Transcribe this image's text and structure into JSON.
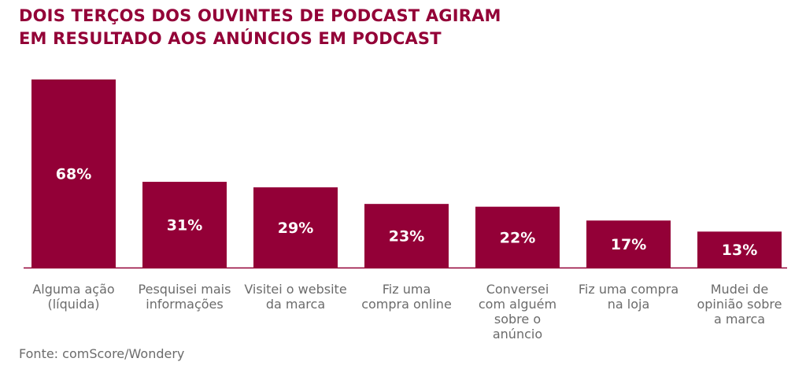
{
  "title_lines": [
    "DOIS TERÇOS DOS OUVINTES DE PODCAST AGIRAM",
    "EM RESULTADO AOS ANÚNCIOS EM PODCAST"
  ],
  "source": "Fonte: comScore/Wondery",
  "colors": {
    "bar": "#930037",
    "title": "#930037",
    "axis": "#930037",
    "category_text": "#6b6b6b",
    "value_text": "#ffffff"
  },
  "chart_data": {
    "type": "bar",
    "title": "DOIS TERÇOS DOS OUVINTES DE PODCAST AGIRAM EM RESULTADO AOS ANÚNCIOS EM PODCAST",
    "categories": [
      [
        "Alguma ação",
        "(líquida)"
      ],
      [
        "Pesquisei mais",
        "informações"
      ],
      [
        "Visitei o website",
        "da marca"
      ],
      [
        "Fiz uma",
        "compra online"
      ],
      [
        "Conversei",
        "com alguém",
        "sobre o",
        "anúncio"
      ],
      [
        "Fiz uma compra",
        "na loja"
      ],
      [
        "Mudei de",
        "opinião sobre",
        "a marca"
      ]
    ],
    "values": [
      68,
      31,
      29,
      23,
      22,
      17,
      13
    ],
    "value_labels": [
      "68%",
      "31%",
      "29%",
      "23%",
      "22%",
      "17%",
      "13%"
    ],
    "unit": "%",
    "ylim": [
      0,
      68
    ],
    "grid": false,
    "legend": "none",
    "xlabel": "",
    "ylabel": ""
  }
}
